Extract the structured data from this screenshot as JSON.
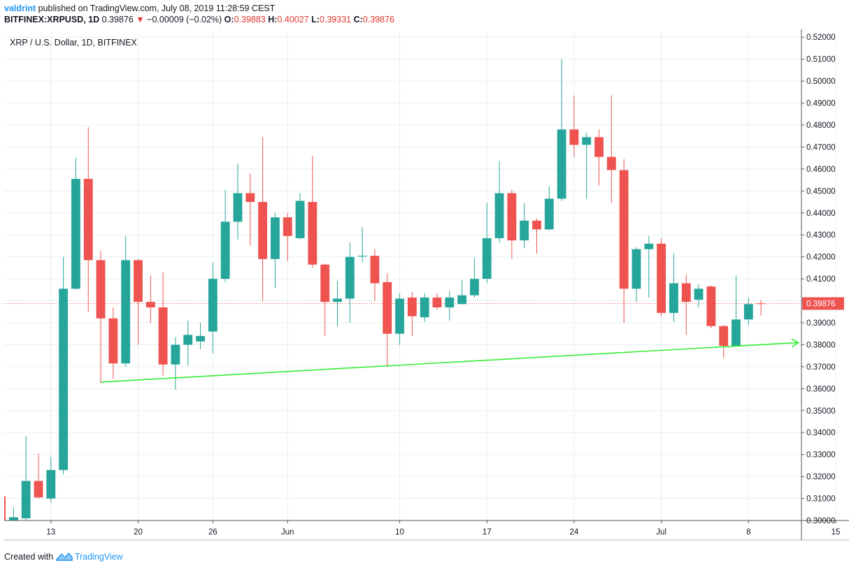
{
  "header": {
    "author": "valdrint",
    "published_text": "published on TradingView.com, July 08, 2019 11:28:59 CEST",
    "symbol": "BITFINEX:XRPUSD, 1D",
    "last": "0.39876",
    "change": "−0.00009 (−0.02%)",
    "o_label": "O:",
    "o": "0.39883",
    "h_label": "H:",
    "h": "0.40027",
    "l_label": "L:",
    "l": "0.39331",
    "c_label": "C:",
    "c": "0.39876"
  },
  "footer": {
    "created_with": "Created with",
    "brand": "TradingView"
  },
  "colors": {
    "up": "#26a69a",
    "down": "#ef5350",
    "trendline": "#33ee33",
    "price_line": "#ef5350",
    "grid": "#e6f0f4"
  },
  "chart_data": {
    "type": "candlestick",
    "title": "XRP / U.S. Dollar, 1D, BITFINEX",
    "ylim": [
      0.3,
      0.52
    ],
    "yticks": [
      "0.30000",
      "0.31000",
      "0.32000",
      "0.33000",
      "0.34000",
      "0.35000",
      "0.36000",
      "0.37000",
      "0.38000",
      "0.39000",
      "0.40000",
      "0.41000",
      "0.42000",
      "0.43000",
      "0.44000",
      "0.45000",
      "0.46000",
      "0.47000",
      "0.48000",
      "0.49000",
      "0.50000",
      "0.51000",
      "0.52000"
    ],
    "xrange_days": [
      -3.75,
      60.25
    ],
    "xticks": [
      {
        "day": 0,
        "label": "13"
      },
      {
        "day": 7,
        "label": "20"
      },
      {
        "day": 13,
        "label": "26"
      },
      {
        "day": 19,
        "label": "Jun"
      },
      {
        "day": 28,
        "label": "10"
      },
      {
        "day": 35,
        "label": "17"
      },
      {
        "day": 42,
        "label": "24"
      },
      {
        "day": 49,
        "label": "Jul"
      },
      {
        "day": 56,
        "label": "8"
      },
      {
        "day": 63,
        "label": "15"
      }
    ],
    "last_price": 0.39876,
    "last_price_label": "0.39876",
    "trendline": [
      {
        "day": 4,
        "price": 0.363
      },
      {
        "day": 60,
        "price": 0.381
      }
    ],
    "candles": [
      {
        "day": -4,
        "o": 0.311,
        "h": 0.311,
        "l": 0.3,
        "c": 0.3
      },
      {
        "day": -3,
        "o": 0.3,
        "h": 0.306,
        "l": 0.299,
        "c": 0.3015
      },
      {
        "day": -2,
        "o": 0.301,
        "h": 0.3385,
        "l": 0.3,
        "c": 0.318
      },
      {
        "day": -1,
        "o": 0.318,
        "h": 0.3305,
        "l": 0.31,
        "c": 0.3105
      },
      {
        "day": 0,
        "o": 0.31,
        "h": 0.329,
        "l": 0.308,
        "c": 0.323
      },
      {
        "day": 1,
        "o": 0.323,
        "h": 0.42,
        "l": 0.321,
        "c": 0.4055
      },
      {
        "day": 2,
        "o": 0.4055,
        "h": 0.465,
        "l": 0.405,
        "c": 0.4555
      },
      {
        "day": 3,
        "o": 0.4555,
        "h": 0.479,
        "l": 0.395,
        "c": 0.4185
      },
      {
        "day": 4,
        "o": 0.4185,
        "h": 0.4225,
        "l": 0.3625,
        "c": 0.392
      },
      {
        "day": 5,
        "o": 0.392,
        "h": 0.397,
        "l": 0.3645,
        "c": 0.3715
      },
      {
        "day": 6,
        "o": 0.3715,
        "h": 0.4295,
        "l": 0.37,
        "c": 0.4185
      },
      {
        "day": 7,
        "o": 0.4185,
        "h": 0.419,
        "l": 0.38,
        "c": 0.3995
      },
      {
        "day": 8,
        "o": 0.3995,
        "h": 0.4115,
        "l": 0.39,
        "c": 0.397
      },
      {
        "day": 9,
        "o": 0.397,
        "h": 0.413,
        "l": 0.366,
        "c": 0.371
      },
      {
        "day": 10,
        "o": 0.371,
        "h": 0.3835,
        "l": 0.3595,
        "c": 0.38
      },
      {
        "day": 11,
        "o": 0.38,
        "h": 0.391,
        "l": 0.3705,
        "c": 0.3845
      },
      {
        "day": 12,
        "o": 0.3815,
        "h": 0.39,
        "l": 0.378,
        "c": 0.384
      },
      {
        "day": 13,
        "o": 0.386,
        "h": 0.4175,
        "l": 0.376,
        "c": 0.41
      },
      {
        "day": 14,
        "o": 0.41,
        "h": 0.4505,
        "l": 0.4085,
        "c": 0.436
      },
      {
        "day": 15,
        "o": 0.436,
        "h": 0.4625,
        "l": 0.428,
        "c": 0.449
      },
      {
        "day": 16,
        "o": 0.449,
        "h": 0.458,
        "l": 0.425,
        "c": 0.445
      },
      {
        "day": 17,
        "o": 0.445,
        "h": 0.4745,
        "l": 0.4,
        "c": 0.419
      },
      {
        "day": 18,
        "o": 0.419,
        "h": 0.44,
        "l": 0.406,
        "c": 0.438
      },
      {
        "day": 19,
        "o": 0.438,
        "h": 0.44,
        "l": 0.418,
        "c": 0.4295
      },
      {
        "day": 20,
        "o": 0.4285,
        "h": 0.449,
        "l": 0.428,
        "c": 0.4455
      },
      {
        "day": 21,
        "o": 0.445,
        "h": 0.466,
        "l": 0.415,
        "c": 0.4165
      },
      {
        "day": 22,
        "o": 0.4165,
        "h": 0.417,
        "l": 0.384,
        "c": 0.3995
      },
      {
        "day": 23,
        "o": 0.3995,
        "h": 0.409,
        "l": 0.3885,
        "c": 0.401
      },
      {
        "day": 24,
        "o": 0.401,
        "h": 0.4265,
        "l": 0.39,
        "c": 0.42
      },
      {
        "day": 25,
        "o": 0.4205,
        "h": 0.4335,
        "l": 0.4175,
        "c": 0.4205
      },
      {
        "day": 26,
        "o": 0.4205,
        "h": 0.4235,
        "l": 0.4,
        "c": 0.408
      },
      {
        "day": 27,
        "o": 0.4085,
        "h": 0.4125,
        "l": 0.37,
        "c": 0.385
      },
      {
        "day": 28,
        "o": 0.385,
        "h": 0.4035,
        "l": 0.38,
        "c": 0.401
      },
      {
        "day": 29,
        "o": 0.4015,
        "h": 0.404,
        "l": 0.384,
        "c": 0.393
      },
      {
        "day": 30,
        "o": 0.3925,
        "h": 0.4035,
        "l": 0.3905,
        "c": 0.4015
      },
      {
        "day": 31,
        "o": 0.4015,
        "h": 0.4035,
        "l": 0.396,
        "c": 0.397
      },
      {
        "day": 32,
        "o": 0.397,
        "h": 0.4045,
        "l": 0.391,
        "c": 0.4015
      },
      {
        "day": 33,
        "o": 0.3985,
        "h": 0.4095,
        "l": 0.399,
        "c": 0.4025
      },
      {
        "day": 34,
        "o": 0.4025,
        "h": 0.4195,
        "l": 0.4015,
        "c": 0.41
      },
      {
        "day": 35,
        "o": 0.41,
        "h": 0.4445,
        "l": 0.408,
        "c": 0.4285
      },
      {
        "day": 36,
        "o": 0.4285,
        "h": 0.4635,
        "l": 0.4265,
        "c": 0.449
      },
      {
        "day": 37,
        "o": 0.449,
        "h": 0.4505,
        "l": 0.419,
        "c": 0.4275
      },
      {
        "day": 38,
        "o": 0.4275,
        "h": 0.4445,
        "l": 0.424,
        "c": 0.4365
      },
      {
        "day": 39,
        "o": 0.4365,
        "h": 0.4375,
        "l": 0.4215,
        "c": 0.4325
      },
      {
        "day": 40,
        "o": 0.4325,
        "h": 0.452,
        "l": 0.432,
        "c": 0.4465
      },
      {
        "day": 41,
        "o": 0.4465,
        "h": 0.51,
        "l": 0.4455,
        "c": 0.478
      },
      {
        "day": 42,
        "o": 0.478,
        "h": 0.4935,
        "l": 0.4655,
        "c": 0.471
      },
      {
        "day": 43,
        "o": 0.471,
        "h": 0.4765,
        "l": 0.4465,
        "c": 0.4745
      },
      {
        "day": 44,
        "o": 0.4745,
        "h": 0.478,
        "l": 0.4525,
        "c": 0.4655
      },
      {
        "day": 45,
        "o": 0.4655,
        "h": 0.4935,
        "l": 0.4445,
        "c": 0.4595
      },
      {
        "day": 46,
        "o": 0.4595,
        "h": 0.4645,
        "l": 0.39,
        "c": 0.4055
      },
      {
        "day": 47,
        "o": 0.4055,
        "h": 0.4245,
        "l": 0.3995,
        "c": 0.4235
      },
      {
        "day": 48,
        "o": 0.4235,
        "h": 0.4295,
        "l": 0.4015,
        "c": 0.426
      },
      {
        "day": 49,
        "o": 0.426,
        "h": 0.4285,
        "l": 0.393,
        "c": 0.3945
      },
      {
        "day": 50,
        "o": 0.3945,
        "h": 0.4215,
        "l": 0.3905,
        "c": 0.408
      },
      {
        "day": 51,
        "o": 0.408,
        "h": 0.412,
        "l": 0.3845,
        "c": 0.3995
      },
      {
        "day": 52,
        "o": 0.4005,
        "h": 0.4075,
        "l": 0.397,
        "c": 0.4055
      },
      {
        "day": 53,
        "o": 0.4065,
        "h": 0.407,
        "l": 0.3875,
        "c": 0.3885
      },
      {
        "day": 54,
        "o": 0.3885,
        "h": 0.389,
        "l": 0.374,
        "c": 0.3795
      },
      {
        "day": 55,
        "o": 0.3795,
        "h": 0.4115,
        "l": 0.3795,
        "c": 0.3915
      },
      {
        "day": 56,
        "o": 0.3915,
        "h": 0.4015,
        "l": 0.389,
        "c": 0.3985
      },
      {
        "day": 57,
        "o": 0.39883,
        "h": 0.40027,
        "l": 0.39331,
        "c": 0.39876
      }
    ]
  }
}
